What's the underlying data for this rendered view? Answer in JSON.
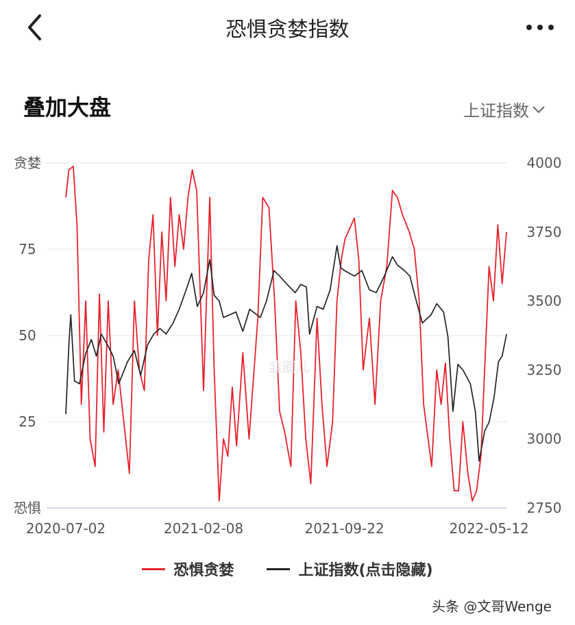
{
  "nav": {
    "title": "恐惧贪婪指数",
    "back_icon": "chevron-left-icon",
    "more_icon": "more-dots-icon"
  },
  "section": {
    "title": "叠加大盘",
    "index_select": "上证指数"
  },
  "chart_data": {
    "type": "line",
    "x_ticks": [
      "2020-07-02",
      "2021-02-08",
      "2021-09-22",
      "2022-05-12"
    ],
    "x_range": [
      "2020-07-02",
      "2022-06-10"
    ],
    "left_axis": {
      "ylim": [
        0,
        100
      ],
      "tick_labels": [
        {
          "value": 100,
          "label": "贪婪"
        },
        {
          "value": 75,
          "label": "75"
        },
        {
          "value": 50,
          "label": "50"
        },
        {
          "value": 25,
          "label": "25"
        },
        {
          "value": 0,
          "label": "恐惧"
        }
      ]
    },
    "right_axis": {
      "ylim": [
        2750,
        4000
      ],
      "tick_labels": [
        {
          "value": 4000,
          "label": "4000"
        },
        {
          "value": 3750,
          "label": "3750"
        },
        {
          "value": 3500,
          "label": "3500"
        },
        {
          "value": 3250,
          "label": "3250"
        },
        {
          "value": 3000,
          "label": "3000"
        },
        {
          "value": 2750,
          "label": "2750"
        }
      ]
    },
    "grid": true,
    "legend_position": "bottom",
    "series": [
      {
        "name": "恐惧贪婪",
        "axis": "left",
        "color": "#e8202a",
        "points": [
          [
            "2020-07-02",
            90
          ],
          [
            "2020-07-07",
            98
          ],
          [
            "2020-07-14",
            99
          ],
          [
            "2020-07-20",
            82
          ],
          [
            "2020-07-27",
            30
          ],
          [
            "2020-08-03",
            60
          ],
          [
            "2020-08-10",
            20
          ],
          [
            "2020-08-18",
            12
          ],
          [
            "2020-08-25",
            62
          ],
          [
            "2020-09-01",
            22
          ],
          [
            "2020-09-08",
            60
          ],
          [
            "2020-09-16",
            30
          ],
          [
            "2020-09-24",
            40
          ],
          [
            "2020-10-12",
            10
          ],
          [
            "2020-10-20",
            60
          ],
          [
            "2020-10-28",
            40
          ],
          [
            "2020-11-05",
            34
          ],
          [
            "2020-11-12",
            72
          ],
          [
            "2020-11-19",
            85
          ],
          [
            "2020-11-26",
            50
          ],
          [
            "2020-12-03",
            80
          ],
          [
            "2020-12-10",
            60
          ],
          [
            "2020-12-17",
            90
          ],
          [
            "2020-12-24",
            70
          ],
          [
            "2020-12-31",
            85
          ],
          [
            "2021-01-07",
            75
          ],
          [
            "2021-01-14",
            90
          ],
          [
            "2021-01-21",
            98
          ],
          [
            "2021-01-28",
            92
          ],
          [
            "2021-02-04",
            55
          ],
          [
            "2021-02-08",
            34
          ],
          [
            "2021-02-18",
            90
          ],
          [
            "2021-02-25",
            40
          ],
          [
            "2021-03-05",
            2
          ],
          [
            "2021-03-12",
            20
          ],
          [
            "2021-03-19",
            15
          ],
          [
            "2021-03-26",
            35
          ],
          [
            "2021-04-02",
            18
          ],
          [
            "2021-04-12",
            45
          ],
          [
            "2021-04-22",
            20
          ],
          [
            "2021-05-06",
            55
          ],
          [
            "2021-05-14",
            90
          ],
          [
            "2021-05-24",
            87
          ],
          [
            "2021-06-02",
            60
          ],
          [
            "2021-06-10",
            28
          ],
          [
            "2021-06-18",
            22
          ],
          [
            "2021-06-28",
            12
          ],
          [
            "2021-07-06",
            60
          ],
          [
            "2021-07-14",
            45
          ],
          [
            "2021-07-22",
            20
          ],
          [
            "2021-07-30",
            7
          ],
          [
            "2021-08-09",
            55
          ],
          [
            "2021-08-17",
            30
          ],
          [
            "2021-08-25",
            12
          ],
          [
            "2021-09-03",
            25
          ],
          [
            "2021-09-10",
            60
          ],
          [
            "2021-09-17",
            72
          ],
          [
            "2021-09-23",
            78
          ],
          [
            "2021-10-08",
            84
          ],
          [
            "2021-10-15",
            72
          ],
          [
            "2021-10-22",
            40
          ],
          [
            "2021-11-01",
            55
          ],
          [
            "2021-11-10",
            30
          ],
          [
            "2021-11-19",
            60
          ],
          [
            "2021-11-29",
            70
          ],
          [
            "2021-12-08",
            92
          ],
          [
            "2021-12-16",
            90
          ],
          [
            "2021-12-24",
            85
          ],
          [
            "2022-01-04",
            80
          ],
          [
            "2022-01-12",
            75
          ],
          [
            "2022-01-20",
            60
          ],
          [
            "2022-01-27",
            30
          ],
          [
            "2022-02-09",
            12
          ],
          [
            "2022-02-17",
            40
          ],
          [
            "2022-02-24",
            30
          ],
          [
            "2022-03-03",
            42
          ],
          [
            "2022-03-10",
            20
          ],
          [
            "2022-03-17",
            5
          ],
          [
            "2022-03-24",
            5
          ],
          [
            "2022-03-31",
            25
          ],
          [
            "2022-04-08",
            10
          ],
          [
            "2022-04-15",
            2
          ],
          [
            "2022-04-22",
            5
          ],
          [
            "2022-04-29",
            15
          ],
          [
            "2022-05-06",
            45
          ],
          [
            "2022-05-12",
            70
          ],
          [
            "2022-05-19",
            60
          ],
          [
            "2022-05-26",
            82
          ],
          [
            "2022-06-02",
            65
          ],
          [
            "2022-06-09",
            80
          ]
        ]
      },
      {
        "name": "上证指数(点击隐藏)",
        "axis": "right",
        "color": "#222222",
        "points": [
          [
            "2020-07-02",
            3090
          ],
          [
            "2020-07-07",
            3340
          ],
          [
            "2020-07-10",
            3450
          ],
          [
            "2020-07-16",
            3210
          ],
          [
            "2020-07-24",
            3200
          ],
          [
            "2020-08-03",
            3310
          ],
          [
            "2020-08-12",
            3360
          ],
          [
            "2020-08-20",
            3300
          ],
          [
            "2020-08-28",
            3380
          ],
          [
            "2020-09-07",
            3340
          ],
          [
            "2020-09-16",
            3300
          ],
          [
            "2020-09-25",
            3200
          ],
          [
            "2020-10-09",
            3280
          ],
          [
            "2020-10-20",
            3320
          ],
          [
            "2020-10-30",
            3230
          ],
          [
            "2020-11-10",
            3340
          ],
          [
            "2020-11-20",
            3380
          ],
          [
            "2020-11-30",
            3400
          ],
          [
            "2020-12-10",
            3380
          ],
          [
            "2020-12-21",
            3420
          ],
          [
            "2020-12-31",
            3470
          ],
          [
            "2021-01-11",
            3540
          ],
          [
            "2021-01-20",
            3600
          ],
          [
            "2021-01-29",
            3480
          ],
          [
            "2021-02-08",
            3530
          ],
          [
            "2021-02-18",
            3650
          ],
          [
            "2021-02-25",
            3520
          ],
          [
            "2021-03-05",
            3500
          ],
          [
            "2021-03-12",
            3440
          ],
          [
            "2021-03-22",
            3450
          ],
          [
            "2021-04-01",
            3460
          ],
          [
            "2021-04-12",
            3390
          ],
          [
            "2021-04-23",
            3470
          ],
          [
            "2021-05-10",
            3440
          ],
          [
            "2021-05-20",
            3500
          ],
          [
            "2021-06-01",
            3610
          ],
          [
            "2021-06-10",
            3590
          ],
          [
            "2021-06-22",
            3560
          ],
          [
            "2021-07-05",
            3530
          ],
          [
            "2021-07-14",
            3560
          ],
          [
            "2021-07-23",
            3550
          ],
          [
            "2021-07-28",
            3380
          ],
          [
            "2021-08-09",
            3480
          ],
          [
            "2021-08-19",
            3470
          ],
          [
            "2021-08-30",
            3540
          ],
          [
            "2021-09-10",
            3700
          ],
          [
            "2021-09-16",
            3620
          ],
          [
            "2021-09-22",
            3610
          ],
          [
            "2021-10-08",
            3590
          ],
          [
            "2021-10-20",
            3610
          ],
          [
            "2021-11-01",
            3540
          ],
          [
            "2021-11-12",
            3530
          ],
          [
            "2021-11-25",
            3590
          ],
          [
            "2021-12-08",
            3660
          ],
          [
            "2021-12-16",
            3630
          ],
          [
            "2021-12-27",
            3610
          ],
          [
            "2022-01-05",
            3590
          ],
          [
            "2022-01-14",
            3510
          ],
          [
            "2022-01-25",
            3420
          ],
          [
            "2022-02-08",
            3450
          ],
          [
            "2022-02-17",
            3490
          ],
          [
            "2022-02-28",
            3460
          ],
          [
            "2022-03-07",
            3370
          ],
          [
            "2022-03-15",
            3100
          ],
          [
            "2022-03-23",
            3270
          ],
          [
            "2022-03-31",
            3250
          ],
          [
            "2022-04-12",
            3200
          ],
          [
            "2022-04-20",
            3100
          ],
          [
            "2022-04-26",
            2920
          ],
          [
            "2022-05-05",
            3030
          ],
          [
            "2022-05-12",
            3060
          ],
          [
            "2022-05-20",
            3150
          ],
          [
            "2022-05-27",
            3280
          ],
          [
            "2022-06-02",
            3300
          ],
          [
            "2022-06-09",
            3380
          ]
        ]
      }
    ]
  },
  "legend": {
    "items": [
      {
        "label": "恐惧贪婪"
      },
      {
        "label": "上证指数(点击隐藏)"
      }
    ]
  },
  "watermark": {
    "center": "韭圈儿",
    "corner": "头条 @文哥Wenge"
  }
}
